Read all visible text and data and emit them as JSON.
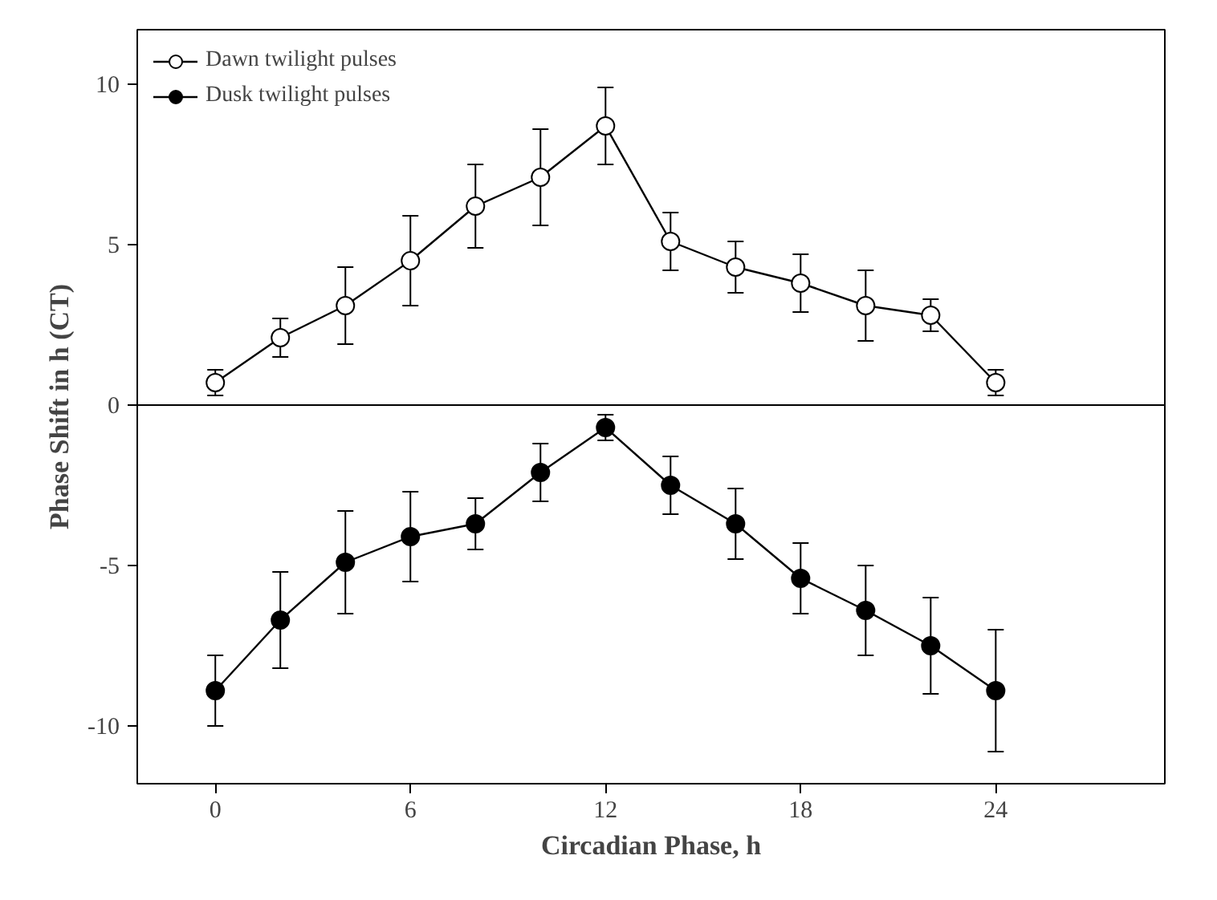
{
  "chart_data": {
    "type": "line",
    "xlabel": "Circadian Phase, h",
    "ylabel": "Phase Shift in h (CT)",
    "x": [
      0,
      2,
      4,
      6,
      8,
      10,
      12,
      14,
      16,
      18,
      20,
      22,
      24
    ],
    "series": [
      {
        "name": "Dawn twilight pulses",
        "color": "#ffffff",
        "values": [
          0.7,
          2.1,
          3.1,
          4.5,
          6.2,
          7.1,
          8.7,
          5.1,
          4.3,
          3.8,
          3.1,
          2.8,
          0.7
        ],
        "errors": [
          0.4,
          0.6,
          1.2,
          1.4,
          1.3,
          1.5,
          1.2,
          0.9,
          0.8,
          0.9,
          1.1,
          0.5,
          0.4
        ]
      },
      {
        "name": "Dusk twilight pulses",
        "color": "#000000",
        "values": [
          -8.9,
          -6.7,
          -4.9,
          -4.1,
          -3.7,
          -2.1,
          -0.7,
          -2.5,
          -3.7,
          -5.4,
          -6.4,
          -7.5,
          -8.9
        ],
        "errors": [
          1.1,
          1.5,
          1.6,
          1.4,
          0.8,
          0.9,
          0.4,
          0.9,
          1.1,
          1.1,
          1.4,
          1.5,
          1.9
        ]
      }
    ],
    "xlim": [
      -2.4,
      29.2
    ],
    "ylim": [
      -11.8,
      11.7
    ],
    "xticks": [
      0,
      6,
      12,
      18,
      24
    ],
    "yticks": [
      -10,
      -5,
      0,
      5,
      10
    ],
    "ref_lines": [
      {
        "axis": "y",
        "value": 0
      }
    ],
    "grid": false,
    "legend": "top left",
    "marker": "circle",
    "line_style": "solid"
  }
}
